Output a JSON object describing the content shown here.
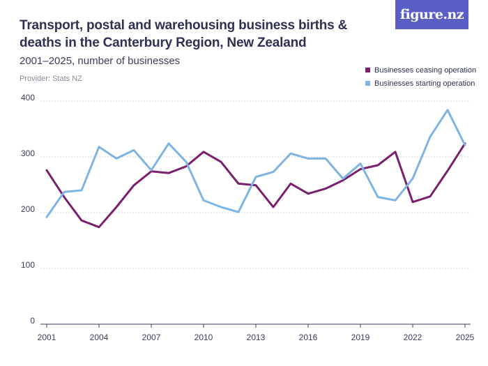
{
  "header": {
    "title": "Transport, postal and warehousing business births & deaths in the Canterbury Region, New Zealand",
    "subtitle": "2001–2025, number of businesses",
    "provider": "Provider: Stats NZ",
    "logo_text": "figure.nz"
  },
  "colors": {
    "ceasing": "#7a1f6e",
    "starting": "#7fb4e0",
    "brand": "#5a5fc5",
    "grid": "#d9d9e0"
  },
  "chart_data": {
    "type": "line",
    "x": [
      2001,
      2002,
      2003,
      2004,
      2005,
      2006,
      2007,
      2008,
      2009,
      2010,
      2011,
      2012,
      2013,
      2014,
      2015,
      2016,
      2017,
      2018,
      2019,
      2020,
      2021,
      2022,
      2023,
      2024,
      2025
    ],
    "series": [
      {
        "name": "Businesses ceasing operation",
        "color": "#7a1f6e",
        "values": [
          276,
          228,
          186,
          174,
          210,
          249,
          274,
          271,
          283,
          309,
          291,
          252,
          249,
          210,
          252,
          234,
          243,
          258,
          278,
          285,
          309,
          219,
          229,
          275,
          324
        ]
      },
      {
        "name": "Businesses starting operation",
        "color": "#7fb4e0",
        "values": [
          192,
          237,
          240,
          318,
          297,
          312,
          276,
          324,
          291,
          222,
          210,
          201,
          264,
          273,
          306,
          297,
          297,
          261,
          288,
          228,
          222,
          261,
          336,
          384,
          321
        ]
      }
    ],
    "xticks": [
      "2001",
      "2004",
      "2007",
      "2010",
      "2013",
      "2016",
      "2019",
      "2022",
      "2025"
    ],
    "yticks": [
      "0",
      "100",
      "200",
      "300",
      "400"
    ],
    "xlim": [
      2001,
      2025
    ],
    "ylim": [
      0,
      400
    ],
    "grid": true,
    "legend_position": "top-right"
  }
}
